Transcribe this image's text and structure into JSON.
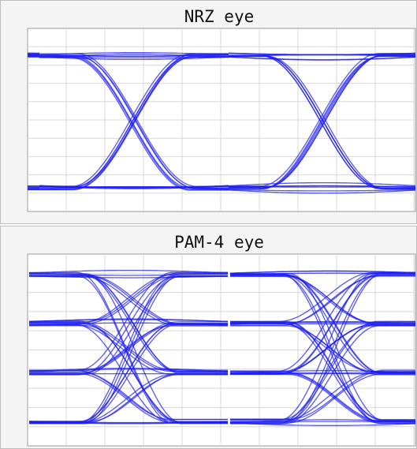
{
  "panels": [
    {
      "title": "NRZ eye"
    },
    {
      "title": "PAM-4 eye"
    }
  ]
}
